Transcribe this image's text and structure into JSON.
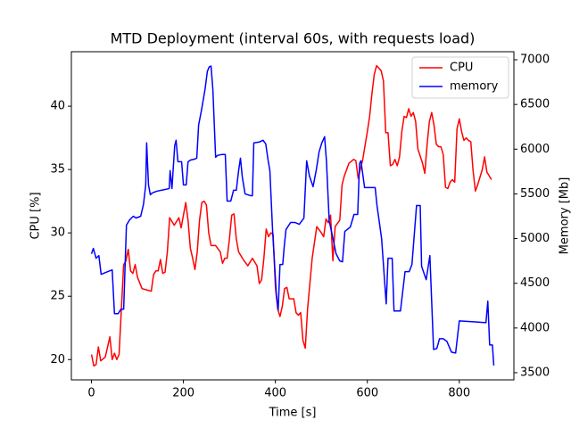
{
  "chart_data": {
    "type": "line",
    "title": "MTD Deployment (interval 60s, with requests load)",
    "xlabel": "Time [s]",
    "ylabel": "CPU [%]",
    "y2label": "Memory [Mb]",
    "xlim": [
      -43.75,
      918.75
    ],
    "xticks": [
      0,
      200,
      400,
      600,
      800
    ],
    "ylim": [
      18.4,
      44.3
    ],
    "yticks": [
      20,
      25,
      30,
      35,
      40
    ],
    "y2lim": [
      3420,
      7090
    ],
    "y2ticks": [
      3500,
      4000,
      4500,
      5000,
      5500,
      6000,
      6500,
      7000
    ],
    "legend": "upper right",
    "grid": false,
    "series": [
      {
        "name": "CPU",
        "color": "#ff0000",
        "axis": "y",
        "x": [
          0,
          5,
          10,
          15,
          20,
          30,
          40,
          45,
          50,
          55,
          60,
          65,
          70,
          75,
          80,
          85,
          90,
          95,
          100,
          110,
          120,
          130,
          135,
          140,
          145,
          150,
          155,
          160,
          165,
          170,
          180,
          190,
          195,
          200,
          205,
          210,
          215,
          220,
          225,
          230,
          235,
          240,
          245,
          250,
          255,
          260,
          270,
          280,
          285,
          290,
          295,
          300,
          305,
          310,
          315,
          320,
          330,
          340,
          350,
          360,
          365,
          370,
          375,
          380,
          385,
          390,
          395,
          400,
          405,
          410,
          415,
          420,
          425,
          430,
          440,
          445,
          450,
          455,
          460,
          465,
          470,
          480,
          490,
          500,
          505,
          510,
          515,
          520,
          525,
          530,
          540,
          545,
          550,
          560,
          570,
          575,
          580,
          590,
          600,
          605,
          610,
          615,
          620,
          630,
          635,
          640,
          645,
          650,
          655,
          660,
          665,
          670,
          675,
          680,
          685,
          690,
          695,
          700,
          705,
          710,
          720,
          725,
          730,
          735,
          740,
          745,
          750,
          755,
          760,
          765,
          770,
          775,
          780,
          785,
          790,
          795,
          800,
          805,
          810,
          815,
          820,
          825,
          830,
          835,
          840,
          850,
          855,
          860,
          870
        ],
        "values": [
          20.4,
          19.5,
          19.6,
          21,
          19.9,
          20.2,
          21.8,
          20,
          20.5,
          20,
          20.4,
          24,
          27.5,
          27.8,
          28.7,
          27,
          26.8,
          27.5,
          26.5,
          25.6,
          25.5,
          25.4,
          26.7,
          27,
          27,
          27.9,
          26.8,
          26.9,
          28.5,
          31.2,
          30.6,
          31.2,
          30.4,
          31.4,
          32.4,
          31,
          28.8,
          28,
          27.1,
          28.5,
          31,
          32.4,
          32.5,
          32.2,
          30,
          29,
          29,
          28.5,
          27.6,
          28,
          28,
          29.5,
          31.4,
          31.5,
          29.5,
          28.5,
          27.9,
          27.4,
          28,
          27.4,
          26,
          26.3,
          28,
          30.3,
          29.7,
          30,
          29.9,
          25.7,
          24,
          23.4,
          24.2,
          25.6,
          25.7,
          24.8,
          24.8,
          23.7,
          23.5,
          23.7,
          21.5,
          20.9,
          24,
          28,
          30.5,
          30,
          29.7,
          31.1,
          30.8,
          31.4,
          27.8,
          30.5,
          31,
          33.8,
          34.5,
          35.5,
          35.8,
          35.7,
          34.3,
          35.8,
          38,
          39.2,
          41,
          42.5,
          43.2,
          42.8,
          42,
          37.9,
          37.9,
          35.3,
          35.4,
          35.8,
          35.3,
          36,
          38,
          39.2,
          39.1,
          39.8,
          39.2,
          39.5,
          38.8,
          36.6,
          35.5,
          34.7,
          37,
          38.8,
          39.5,
          38.5,
          37,
          36.8,
          36.8,
          36.2,
          33.6,
          33.5,
          34,
          34.2,
          34,
          38.2,
          39,
          38,
          37.3,
          37.5,
          37.3,
          37.2,
          34.9,
          33.3,
          33.8,
          35,
          36,
          34.8,
          34.2
        ]
      },
      {
        "name": "memory",
        "color": "#0000ff",
        "axis": "y2",
        "x": [
          0,
          4,
          10,
          16,
          21,
          35,
          45,
          50,
          58,
          64,
          70,
          76,
          83,
          91,
          97,
          107,
          113,
          118,
          120,
          124,
          128,
          132,
          142,
          161,
          169,
          171,
          175,
          181,
          184,
          188,
          196,
          200,
          206,
          210,
          216,
          225,
          229,
          233,
          239,
          247,
          252,
          256,
          260,
          264,
          270,
          274,
          283,
          291,
          295,
          303,
          309,
          315,
          320,
          324,
          328,
          334,
          346,
          350,
          353,
          365,
          373,
          379,
          384,
          388,
          394,
          402,
          406,
          410,
          416,
          419,
          423,
          433,
          443,
          452,
          462,
          468,
          474,
          482,
          489,
          495,
          501,
          507,
          511,
          517,
          524,
          532,
          540,
          546,
          551,
          563,
          571,
          579,
          583,
          586,
          594,
          614,
          617,
          621,
          631,
          641,
          645,
          654,
          658,
          672,
          682,
          691,
          697,
          707,
          715,
          718,
          728,
          736,
          744,
          751,
          757,
          765,
          773,
          783,
          792,
          800,
          831,
          858,
          862,
          866,
          872,
          875
        ],
        "values": [
          4830,
          4890,
          4780,
          4810,
          4600,
          4630,
          4650,
          4160,
          4160,
          4210,
          4210,
          5150,
          5210,
          5250,
          5230,
          5250,
          5380,
          5600,
          6070,
          5600,
          5490,
          5510,
          5530,
          5550,
          5560,
          5760,
          5560,
          6040,
          6100,
          5860,
          5860,
          5600,
          5600,
          5860,
          5880,
          5890,
          5900,
          6270,
          6430,
          6670,
          6870,
          6920,
          6930,
          6670,
          5910,
          5930,
          5940,
          5940,
          5420,
          5420,
          5540,
          5540,
          5760,
          5900,
          5690,
          5500,
          5480,
          5480,
          6070,
          6080,
          6100,
          6060,
          5880,
          5760,
          5080,
          4380,
          4200,
          4710,
          4710,
          4900,
          5100,
          5180,
          5180,
          5160,
          5230,
          5870,
          5700,
          5580,
          5770,
          5970,
          6070,
          6140,
          5870,
          5200,
          5030,
          4830,
          4750,
          4740,
          5080,
          5130,
          5270,
          5270,
          5840,
          5870,
          5570,
          5570,
          5570,
          5370,
          5000,
          4270,
          4780,
          4780,
          4190,
          4190,
          4630,
          4630,
          4710,
          5370,
          5370,
          4690,
          4540,
          4810,
          3760,
          3770,
          3880,
          3880,
          3850,
          3730,
          3720,
          4080,
          4070,
          4060,
          4300,
          3810,
          3810,
          3580
        ]
      }
    ]
  }
}
